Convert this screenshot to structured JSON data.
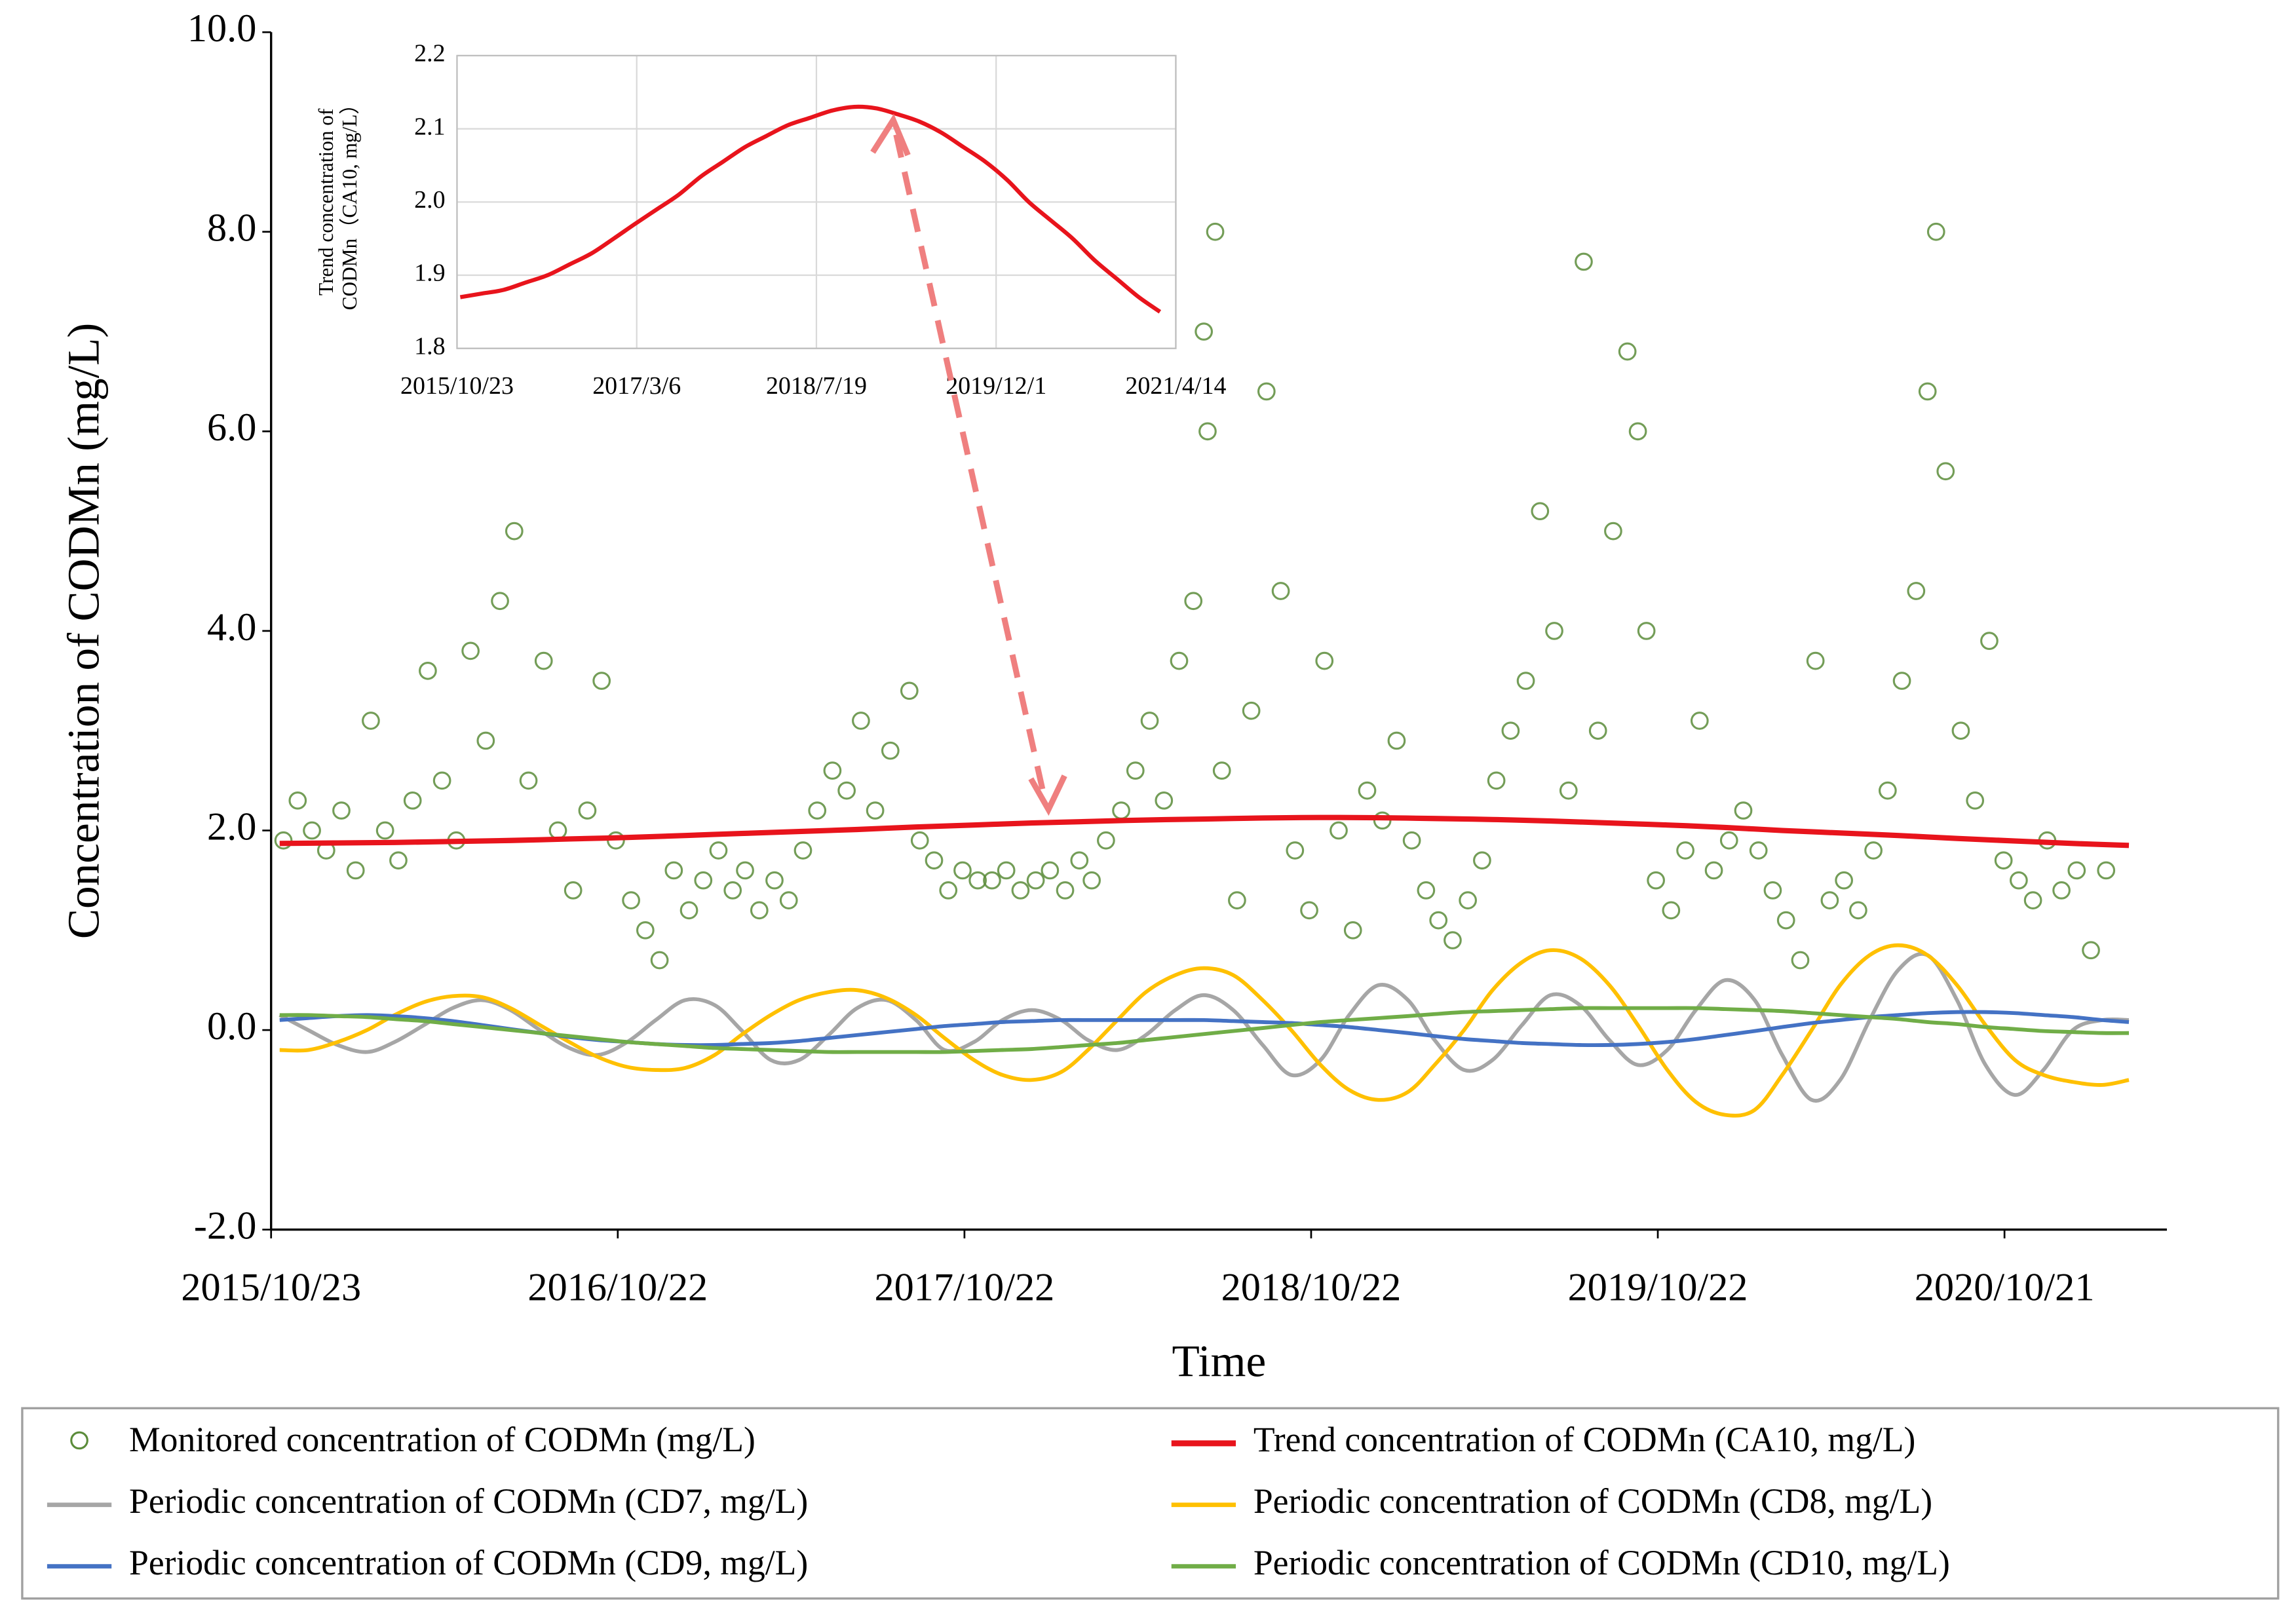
{
  "chart_data": [
    {
      "type": "line",
      "xlabel": "Time",
      "ylabel": "Concentration of CODMn (mg/L)",
      "xlim": [
        "2015/10/23",
        "2021/4/10"
      ],
      "ylim": [
        -2,
        10
      ],
      "xticks": [
        "2015/10/23",
        "2016/10/22",
        "2017/10/22",
        "2018/10/22",
        "2019/10/22",
        "2020/10/21"
      ],
      "yticks": [
        {
          "value": -2,
          "label": "-2.0"
        },
        {
          "value": 0,
          "label": "0.0"
        },
        {
          "value": 2,
          "label": "2.0"
        },
        {
          "value": 4,
          "label": "4.0"
        },
        {
          "value": 6,
          "label": "6.0"
        },
        {
          "value": 8,
          "label": "8.0"
        },
        {
          "value": 10,
          "label": "10.0"
        }
      ],
      "grid": false,
      "x": [
        "2015/11/1",
        "2015/12/1",
        "2016/1/1",
        "2016/2/1",
        "2016/3/1",
        "2016/4/1",
        "2016/5/1",
        "2016/6/1",
        "2016/7/1",
        "2016/8/1",
        "2016/9/1",
        "2016/10/1",
        "2016/11/1",
        "2016/12/1",
        "2017/1/1",
        "2017/2/1",
        "2017/3/1",
        "2017/4/1",
        "2017/5/1",
        "2017/6/1",
        "2017/7/1",
        "2017/8/1",
        "2017/9/1",
        "2017/10/1",
        "2017/11/1",
        "2017/12/1",
        "2018/1/1",
        "2018/2/1",
        "2018/3/1",
        "2018/4/1",
        "2018/5/1",
        "2018/6/1",
        "2018/7/1",
        "2018/8/1",
        "2018/9/1",
        "2018/10/1",
        "2018/11/1",
        "2018/12/1",
        "2019/1/1",
        "2019/2/1",
        "2019/3/1",
        "2019/4/1",
        "2019/5/1",
        "2019/6/1",
        "2019/7/1",
        "2019/8/1",
        "2019/9/1",
        "2019/10/1",
        "2019/11/1",
        "2019/12/1",
        "2020/1/1",
        "2020/2/1",
        "2020/3/1",
        "2020/4/1",
        "2020/5/1",
        "2020/6/1",
        "2020/7/1",
        "2020/8/1",
        "2020/9/1",
        "2020/10/1",
        "2020/11/1",
        "2020/12/1",
        "2021/1/1",
        "2021/2/1",
        "2021/3/1"
      ],
      "series": [
        {
          "name": "Monitored concentration of CODMn (mg/L)",
          "type": "scatter",
          "color": "#5b8c3a",
          "x": [
            "2015/11/5",
            "2015/11/20",
            "2015/12/5",
            "2015/12/20",
            "2016/1/5",
            "2016/1/20",
            "2016/2/5",
            "2016/2/20",
            "2016/3/5",
            "2016/3/20",
            "2016/4/5",
            "2016/4/20",
            "2016/5/5",
            "2016/5/20",
            "2016/6/5",
            "2016/6/20",
            "2016/7/5",
            "2016/7/20",
            "2016/8/5",
            "2016/8/20",
            "2016/9/5",
            "2016/9/20",
            "2016/10/5",
            "2016/10/20",
            "2016/11/5",
            "2016/11/20",
            "2016/12/5",
            "2016/12/20",
            "2017/1/5",
            "2017/1/20",
            "2017/2/5",
            "2017/2/20",
            "2017/3/5",
            "2017/3/20",
            "2017/4/5",
            "2017/4/20",
            "2017/5/5",
            "2017/5/20",
            "2017/6/5",
            "2017/6/20",
            "2017/7/5",
            "2017/7/20",
            "2017/8/5",
            "2017/8/25",
            "2017/9/5",
            "2017/9/20",
            "2017/10/5",
            "2017/10/20",
            "2017/11/5",
            "2017/11/20",
            "2017/12/5",
            "2017/12/20",
            "2018/1/5",
            "2018/1/20",
            "2018/2/5",
            "2018/2/20",
            "2018/3/5",
            "2018/3/20",
            "2018/4/5",
            "2018/4/20",
            "2018/5/5",
            "2018/5/20",
            "2018/6/5",
            "2018/6/20",
            "2018/7/1",
            "2018/7/5",
            "2018/7/13",
            "2018/7/20",
            "2018/8/5",
            "2018/8/20",
            "2018/9/5",
            "2018/9/20",
            "2018/10/5",
            "2018/10/20",
            "2018/11/5",
            "2018/11/20",
            "2018/12/5",
            "2018/12/20",
            "2019/1/5",
            "2019/1/20",
            "2019/2/5",
            "2019/2/20",
            "2019/3/5",
            "2019/3/20",
            "2019/4/5",
            "2019/4/20",
            "2019/5/5",
            "2019/5/20",
            "2019/6/5",
            "2019/6/20",
            "2019/7/5",
            "2019/7/20",
            "2019/8/5",
            "2019/8/20",
            "2019/9/5",
            "2019/9/20",
            "2019/10/1",
            "2019/10/10",
            "2019/10/20",
            "2019/11/5",
            "2019/11/20",
            "2019/12/5",
            "2019/12/20",
            "2020/1/5",
            "2020/1/20",
            "2020/2/5",
            "2020/2/20",
            "2020/3/5",
            "2020/3/20",
            "2020/4/5",
            "2020/4/20",
            "2020/5/5",
            "2020/5/20",
            "2020/6/5",
            "2020/6/20",
            "2020/7/5",
            "2020/7/20",
            "2020/8/1",
            "2020/8/10",
            "2020/8/20",
            "2020/9/5",
            "2020/9/20",
            "2020/10/5",
            "2020/10/20",
            "2020/11/5",
            "2020/11/20",
            "2020/12/5",
            "2020/12/20",
            "2021/1/5",
            "2021/1/20",
            "2021/2/5"
          ],
          "values": [
            1.9,
            2.3,
            2.0,
            1.8,
            2.2,
            1.6,
            3.1,
            2.0,
            1.7,
            2.3,
            3.6,
            2.5,
            1.9,
            3.8,
            2.9,
            4.3,
            5.0,
            2.5,
            3.7,
            2.0,
            1.4,
            2.2,
            3.5,
            1.9,
            1.3,
            1.0,
            0.7,
            1.6,
            1.2,
            1.5,
            1.8,
            1.4,
            1.6,
            1.2,
            1.5,
            1.3,
            1.8,
            2.2,
            2.6,
            2.4,
            3.1,
            2.2,
            2.8,
            3.4,
            1.9,
            1.7,
            1.4,
            1.6,
            1.5,
            1.5,
            1.6,
            1.4,
            1.5,
            1.6,
            1.4,
            1.7,
            1.5,
            1.9,
            2.2,
            2.6,
            3.1,
            2.3,
            3.7,
            4.3,
            7.0,
            6.0,
            8.0,
            2.6,
            1.3,
            3.2,
            6.4,
            4.4,
            1.8,
            1.2,
            3.7,
            2.0,
            1.0,
            2.4,
            2.1,
            2.9,
            1.9,
            1.4,
            1.1,
            0.9,
            1.3,
            1.7,
            2.5,
            3.0,
            3.5,
            5.2,
            4.0,
            2.4,
            7.7,
            3.0,
            5.0,
            6.8,
            6.0,
            4.0,
            1.5,
            1.2,
            1.8,
            3.1,
            1.6,
            1.9,
            2.2,
            1.8,
            1.4,
            1.1,
            0.7,
            3.7,
            1.3,
            1.5,
            1.2,
            1.8,
            2.4,
            3.5,
            4.4,
            6.4,
            8.0,
            5.6,
            3.0,
            2.3,
            3.9,
            1.7,
            1.5,
            1.3,
            1.9,
            1.4,
            1.6,
            0.8,
            1.6
          ]
        },
        {
          "name": "Trend concentration of CODMn (CA10, mg/L)",
          "type": "line",
          "color": "#e8141c",
          "x": [
            "2015/11/1",
            "2016/1/1",
            "2016/3/1",
            "2016/5/1",
            "2016/7/1",
            "2016/9/1",
            "2016/11/1",
            "2017/1/1",
            "2017/3/1",
            "2017/5/1",
            "2017/7/1",
            "2017/9/1",
            "2017/11/1",
            "2018/1/1",
            "2018/3/1",
            "2018/5/1",
            "2018/7/1",
            "2018/9/1",
            "2018/11/1",
            "2019/1/1",
            "2019/3/1",
            "2019/5/1",
            "2019/7/1",
            "2019/9/1",
            "2019/11/1",
            "2020/1/1",
            "2020/3/1",
            "2020/5/1",
            "2020/7/1",
            "2020/9/1",
            "2020/11/1",
            "2021/1/1",
            "2021/3/1"
          ],
          "values": [
            1.87,
            1.875,
            1.88,
            1.89,
            1.9,
            1.915,
            1.93,
            1.95,
            1.97,
            1.99,
            2.01,
            2.035,
            2.055,
            2.075,
            2.09,
            2.105,
            2.115,
            2.125,
            2.13,
            2.128,
            2.12,
            2.11,
            2.095,
            2.075,
            2.055,
            2.03,
            2.0,
            1.975,
            1.95,
            1.92,
            1.895,
            1.87,
            1.85
          ]
        },
        {
          "name": "Periodic concentration of CODMn (CD7, mg/L)",
          "type": "line",
          "color": "#a6a6a6",
          "values": [
            0.15,
            0.0,
            -0.15,
            -0.22,
            -0.12,
            0.05,
            0.22,
            0.3,
            0.2,
            0.0,
            -0.18,
            -0.25,
            -0.12,
            0.1,
            0.3,
            0.25,
            0.0,
            -0.3,
            -0.3,
            -0.05,
            0.22,
            0.3,
            0.1,
            -0.2,
            -0.12,
            0.1,
            0.2,
            0.1,
            -0.1,
            -0.2,
            -0.05,
            0.2,
            0.35,
            0.2,
            -0.15,
            -0.45,
            -0.3,
            0.15,
            0.45,
            0.3,
            -0.1,
            -0.4,
            -0.3,
            0.05,
            0.35,
            0.25,
            -0.1,
            -0.35,
            -0.2,
            0.2,
            0.5,
            0.3,
            -0.25,
            -0.7,
            -0.5,
            0.1,
            0.6,
            0.75,
            0.3,
            -0.35,
            -0.65,
            -0.4,
            0.0,
            0.1,
            0.1
          ]
        },
        {
          "name": "Periodic concentration of CODMn (CD8, mg/L)",
          "type": "line",
          "color": "#ffc000",
          "values": [
            -0.2,
            -0.2,
            -0.12,
            0.0,
            0.15,
            0.28,
            0.34,
            0.33,
            0.22,
            0.05,
            -0.12,
            -0.27,
            -0.37,
            -0.4,
            -0.38,
            -0.25,
            -0.05,
            0.15,
            0.3,
            0.38,
            0.4,
            0.32,
            0.15,
            -0.08,
            -0.3,
            -0.45,
            -0.5,
            -0.42,
            -0.2,
            0.1,
            0.38,
            0.55,
            0.62,
            0.55,
            0.3,
            0.0,
            -0.35,
            -0.6,
            -0.7,
            -0.62,
            -0.35,
            0.0,
            0.4,
            0.68,
            0.8,
            0.72,
            0.45,
            0.05,
            -0.4,
            -0.72,
            -0.85,
            -0.8,
            -0.45,
            0.0,
            0.45,
            0.75,
            0.85,
            0.75,
            0.45,
            0.05,
            -0.3,
            -0.45,
            -0.52,
            -0.55,
            -0.5
          ]
        },
        {
          "name": "Periodic concentration of CODMn (CD9, mg/L)",
          "type": "line",
          "color": "#4472c4",
          "values": [
            0.1,
            0.12,
            0.14,
            0.15,
            0.14,
            0.12,
            0.09,
            0.05,
            0.01,
            -0.03,
            -0.07,
            -0.1,
            -0.12,
            -0.14,
            -0.15,
            -0.15,
            -0.14,
            -0.13,
            -0.11,
            -0.08,
            -0.05,
            -0.02,
            0.01,
            0.04,
            0.06,
            0.08,
            0.09,
            0.1,
            0.1,
            0.1,
            0.1,
            0.1,
            0.1,
            0.09,
            0.08,
            0.07,
            0.05,
            0.03,
            0.0,
            -0.03,
            -0.06,
            -0.09,
            -0.11,
            -0.13,
            -0.14,
            -0.15,
            -0.15,
            -0.14,
            -0.12,
            -0.09,
            -0.05,
            -0.01,
            0.03,
            0.07,
            0.1,
            0.13,
            0.15,
            0.17,
            0.18,
            0.18,
            0.17,
            0.15,
            0.13,
            0.1,
            0.08
          ]
        },
        {
          "name": "Periodic concentration of CODMn (CD10, mg/L)",
          "type": "line",
          "color": "#70ad47",
          "values": [
            0.15,
            0.15,
            0.14,
            0.13,
            0.11,
            0.09,
            0.06,
            0.03,
            0.0,
            -0.03,
            -0.06,
            -0.09,
            -0.12,
            -0.14,
            -0.16,
            -0.18,
            -0.19,
            -0.2,
            -0.21,
            -0.22,
            -0.22,
            -0.22,
            -0.22,
            -0.22,
            -0.21,
            -0.2,
            -0.19,
            -0.17,
            -0.15,
            -0.13,
            -0.1,
            -0.07,
            -0.04,
            -0.01,
            0.02,
            0.05,
            0.08,
            0.1,
            0.12,
            0.14,
            0.16,
            0.18,
            0.19,
            0.2,
            0.21,
            0.22,
            0.22,
            0.22,
            0.22,
            0.22,
            0.21,
            0.2,
            0.19,
            0.17,
            0.15,
            0.13,
            0.11,
            0.08,
            0.06,
            0.03,
            0.01,
            -0.01,
            -0.02,
            -0.03,
            -0.03
          ]
        }
      ]
    },
    {
      "type": "line",
      "ylabel": [
        "Trend concentration of",
        "CODMn（CA10, mg/L）"
      ],
      "xlim": [
        "2015/10/23",
        "2021/4/14"
      ],
      "ylim": [
        1.8,
        2.2
      ],
      "xticks": [
        "2015/10/23",
        "2017/3/6",
        "2018/7/19",
        "2019/12/1",
        "2021/4/14"
      ],
      "yticks": [
        1.8,
        1.9,
        {
          "value": 2,
          "label": "2.0"
        },
        2.1,
        2.2
      ],
      "grid": true,
      "series": [
        {
          "type": "line",
          "color": "#e8141c",
          "x": [
            "2015/11/1",
            "2016/1/1",
            "2016/3/1",
            "2016/5/1",
            "2016/7/1",
            "2016/9/1",
            "2016/11/1",
            "2017/1/1",
            "2017/3/1",
            "2017/5/1",
            "2017/7/1",
            "2017/9/1",
            "2017/11/1",
            "2018/1/1",
            "2018/3/1",
            "2018/5/1",
            "2018/7/1",
            "2018/9/1",
            "2018/11/1",
            "2019/1/1",
            "2019/3/1",
            "2019/5/1",
            "2019/7/1",
            "2019/9/1",
            "2019/11/1",
            "2020/1/1",
            "2020/3/1",
            "2020/5/1",
            "2020/7/1",
            "2020/9/1",
            "2020/11/1",
            "2021/1/1",
            "2021/3/1"
          ],
          "values": [
            1.87,
            1.875,
            1.88,
            1.89,
            1.9,
            1.915,
            1.93,
            1.95,
            1.97,
            1.99,
            2.01,
            2.035,
            2.055,
            2.075,
            2.09,
            2.105,
            2.115,
            2.125,
            2.13,
            2.128,
            2.12,
            2.11,
            2.095,
            2.075,
            2.055,
            2.03,
            2.0,
            1.975,
            1.95,
            1.92,
            1.895,
            1.87,
            1.85
          ]
        }
      ]
    }
  ]
}
